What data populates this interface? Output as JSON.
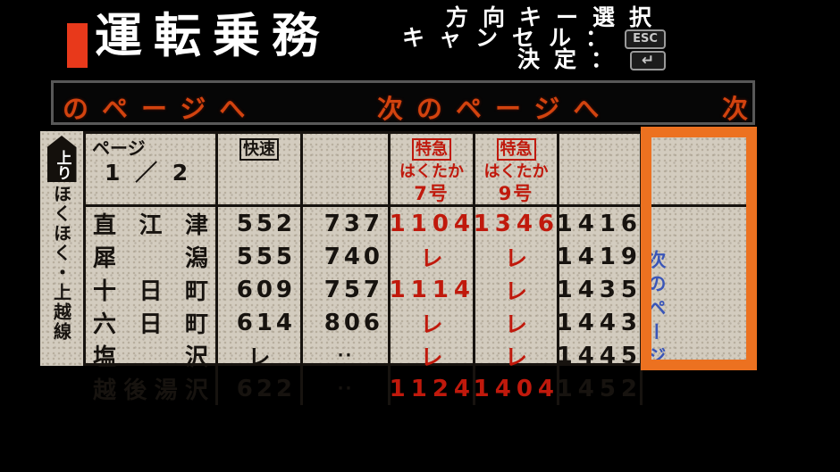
{
  "header": {
    "title": "運転乗務",
    "help": {
      "line1": "方向キー選択",
      "cancel_label": "キャンセル：",
      "cancel_key": "ESC",
      "confirm_label": "決定：",
      "confirm_key": "↵"
    }
  },
  "marquee": {
    "segments": [
      "のページへ",
      "次のページへ",
      "次"
    ]
  },
  "sidebar": {
    "direction_badge": "上り",
    "line_name": "ほくほく・上越線"
  },
  "table": {
    "page_label": "ページ",
    "page_number": "1 ／ 2",
    "stations": [
      "直江津",
      "犀潟",
      "十日町",
      "六日町",
      "塩沢",
      "越後湯沢"
    ],
    "columns": [
      {
        "type_badge": "快速",
        "train_name": "",
        "train_no": "",
        "color": "black",
        "times": [
          "552",
          "555",
          "609",
          "614",
          "レ",
          "622"
        ]
      },
      {
        "type_badge": "",
        "train_name": "",
        "train_no": "",
        "color": "black",
        "times": [
          "737",
          "740",
          "757",
          "806",
          "··",
          "··"
        ]
      },
      {
        "type_badge": "特急",
        "train_name": "はくたか",
        "train_no": "7号",
        "color": "red",
        "times": [
          "1104",
          "レ",
          "1114",
          "レ",
          "レ",
          "1124"
        ]
      },
      {
        "type_badge": "特急",
        "train_name": "はくたか",
        "train_no": "9号",
        "color": "red",
        "times": [
          "1346",
          "レ",
          "レ",
          "レ",
          "レ",
          "1404"
        ]
      },
      {
        "type_badge": "",
        "train_name": "",
        "train_no": "",
        "color": "black",
        "times": [
          "1416",
          "1419",
          "1435",
          "1443",
          "1445",
          "1452"
        ]
      }
    ],
    "next_page_label": "次のページ"
  },
  "colors": {
    "selection_cursor": "#ec7120",
    "express_red": "#c0190c",
    "next_page_blue": "#3a56b8",
    "title_accent": "#e8391b",
    "marquee_text": "#d2430f",
    "paper": "#d3ccbf"
  }
}
